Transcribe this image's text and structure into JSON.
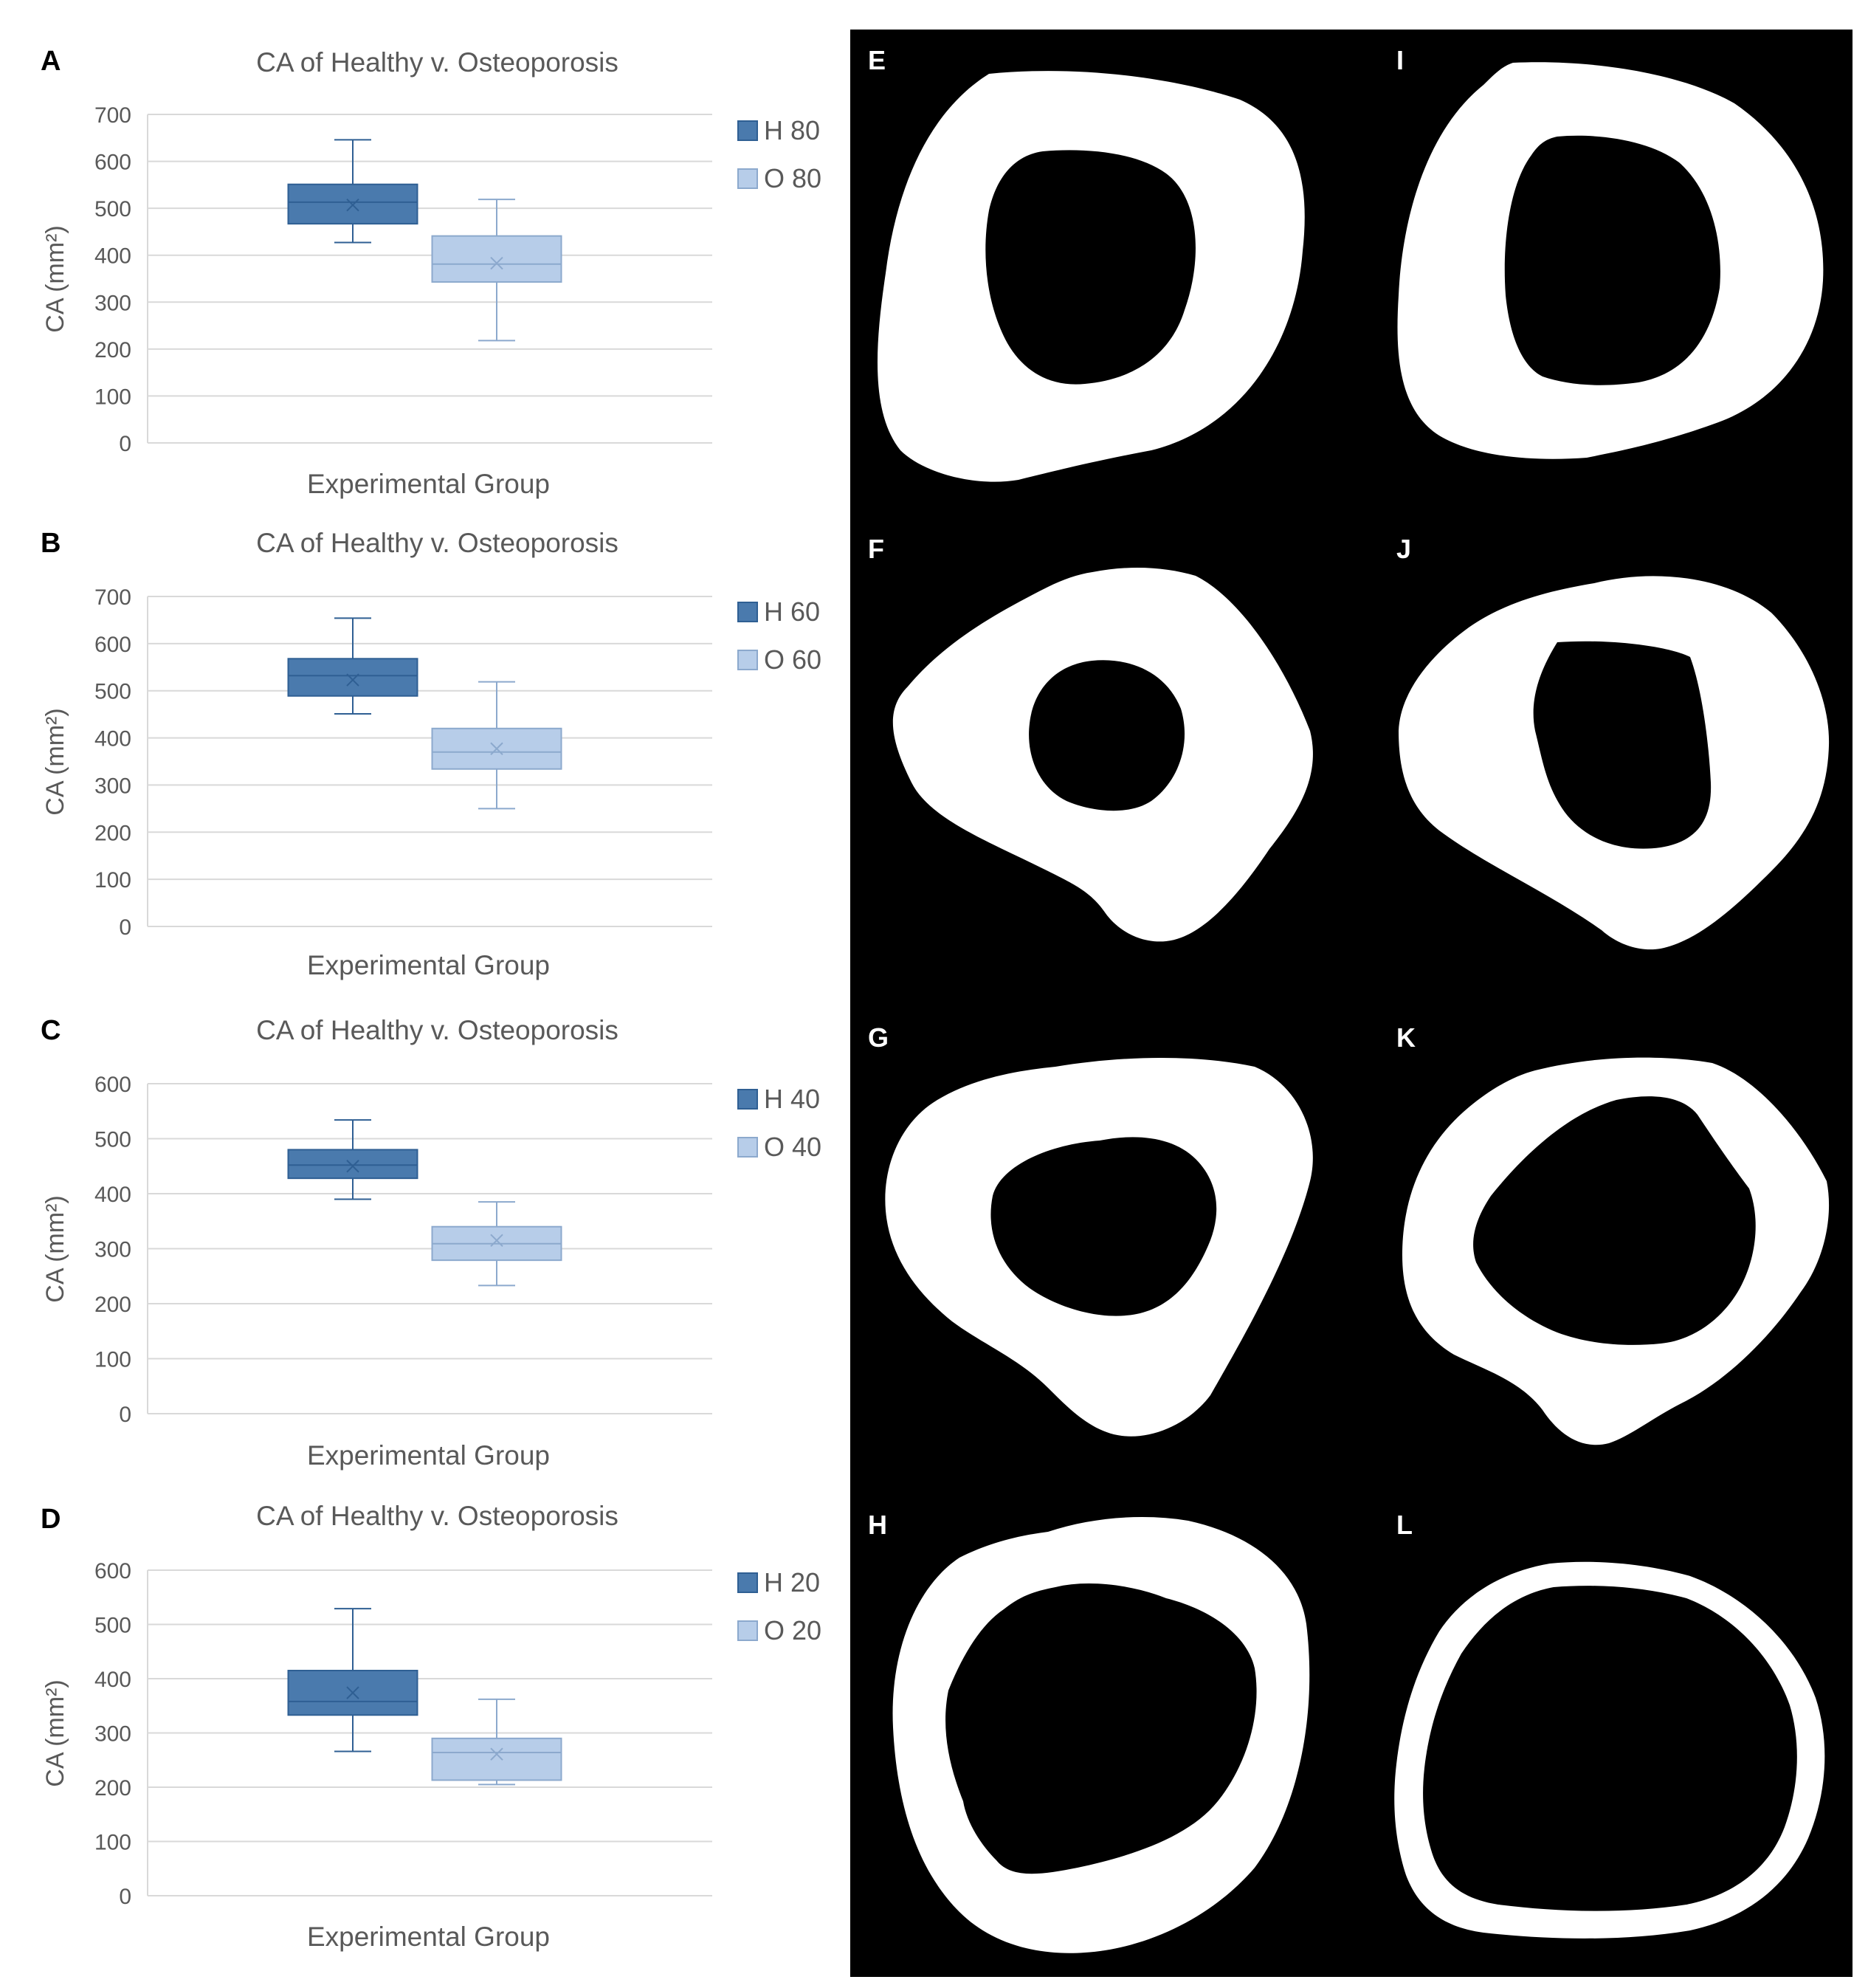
{
  "colors": {
    "healthy_fill": "#4a7aad",
    "healthy_stroke": "#2f5f93",
    "osteo_fill": "#b7cde9",
    "osteo_stroke": "#8ca9cd",
    "grid": "#d9d9d9",
    "panel_bg": "#000000",
    "shape": "#ffffff"
  },
  "chart_data": [
    {
      "type": "box",
      "panel_label": "A",
      "title": "CA of Healthy v. Osteoporosis",
      "xlabel": "Experimental Group",
      "ylabel": "CA (mm²)",
      "ylim": [
        0,
        700
      ],
      "yticks": [
        0,
        100,
        200,
        300,
        400,
        500,
        600,
        700
      ],
      "grid": true,
      "legend": "right",
      "series": [
        {
          "name": "H 80",
          "min": 427,
          "q1": 467,
          "median": 513,
          "q3": 551,
          "max": 646,
          "mean": 507
        },
        {
          "name": "O 80",
          "min": 218,
          "q1": 343,
          "median": 381,
          "q3": 441,
          "max": 519,
          "mean": 383
        }
      ]
    },
    {
      "type": "box",
      "panel_label": "B",
      "title": "CA of Healthy v. Osteoporosis",
      "xlabel": "Experimental Group",
      "ylabel": "CA (mm²)",
      "ylim": [
        0,
        700
      ],
      "yticks": [
        0,
        100,
        200,
        300,
        400,
        500,
        600,
        700
      ],
      "grid": true,
      "legend": "right",
      "series": [
        {
          "name": "H 60",
          "min": 451,
          "q1": 489,
          "median": 532,
          "q3": 568,
          "max": 654,
          "mean": 523
        },
        {
          "name": "O 60",
          "min": 250,
          "q1": 334,
          "median": 370,
          "q3": 420,
          "max": 519,
          "mean": 377
        }
      ]
    },
    {
      "type": "box",
      "panel_label": "C",
      "title": "CA of Healthy v. Osteoporosis",
      "xlabel": "Experimental Group",
      "ylabel": "CA (mm²)",
      "ylim": [
        0,
        600
      ],
      "yticks": [
        0,
        100,
        200,
        300,
        400,
        500,
        600
      ],
      "grid": true,
      "legend": "right",
      "series": [
        {
          "name": "H 40",
          "min": 390,
          "q1": 428,
          "median": 452,
          "q3": 480,
          "max": 534,
          "mean": 450
        },
        {
          "name": "O 40",
          "min": 233,
          "q1": 279,
          "median": 309,
          "q3": 340,
          "max": 385,
          "mean": 315
        }
      ]
    },
    {
      "type": "box",
      "panel_label": "D",
      "title": "CA  of Healthy v. Osteoporosis",
      "xlabel": "Experimental Group",
      "ylabel": "CA (mm²)",
      "ylim": [
        0,
        600
      ],
      "yticks": [
        0,
        100,
        200,
        300,
        400,
        500,
        600
      ],
      "grid": true,
      "legend": "right",
      "series": [
        {
          "name": "H 20",
          "min": 266,
          "q1": 333,
          "median": 358,
          "q3": 415,
          "max": 529,
          "mean": 374
        },
        {
          "name": "O 20",
          "min": 205,
          "q1": 213,
          "median": 264,
          "q3": 290,
          "max": 362,
          "mean": 261
        }
      ]
    }
  ],
  "image_panels": [
    {
      "label": "E"
    },
    {
      "label": "I"
    },
    {
      "label": "F"
    },
    {
      "label": "J"
    },
    {
      "label": "G"
    },
    {
      "label": "K"
    },
    {
      "label": "H"
    },
    {
      "label": "L"
    }
  ]
}
